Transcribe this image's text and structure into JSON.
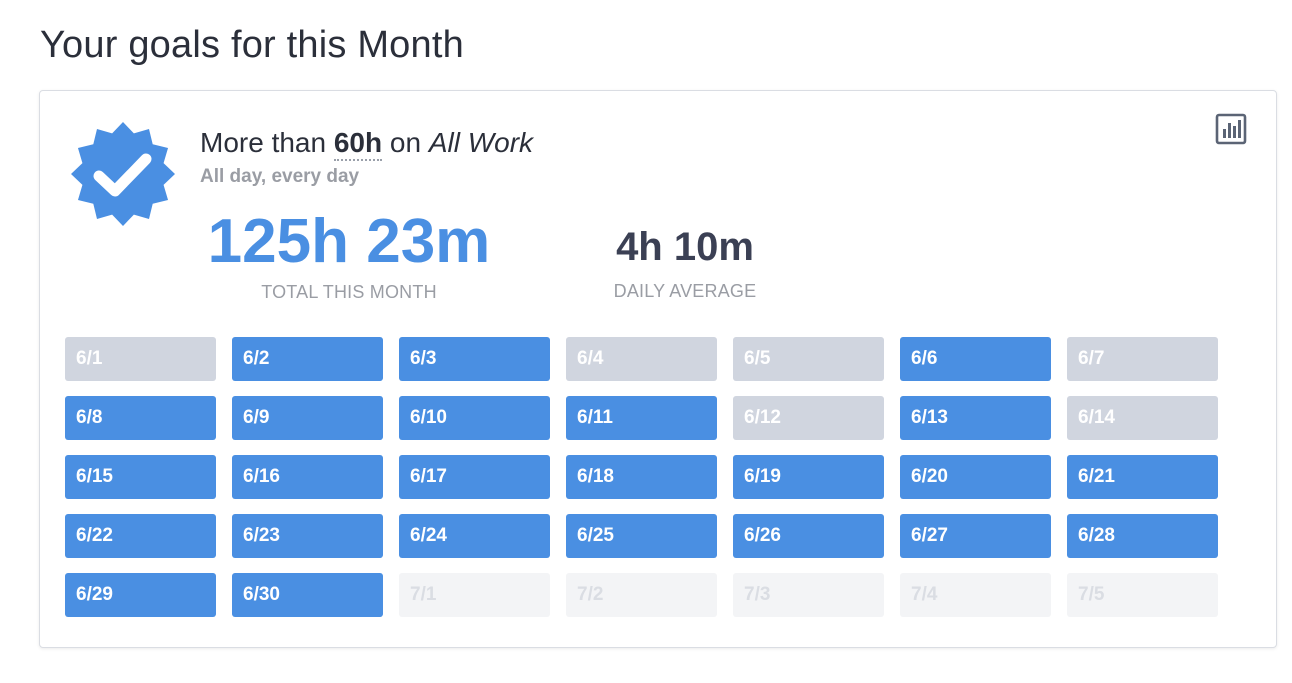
{
  "page": {
    "title": "Your goals for this Month"
  },
  "goal": {
    "prefix": "More than",
    "hours": "60h",
    "connector": "on",
    "project": "All Work",
    "schedule": "All day, every day",
    "badge_icon": "verified-check-icon",
    "chart_icon": "bar-chart-icon",
    "colors": {
      "accent": "#4a8fe2",
      "missed": "#d0d5df",
      "future": "#f3f4f6"
    }
  },
  "stats": {
    "total": {
      "value": "125h 23m",
      "label": "TOTAL THIS MONTH"
    },
    "average": {
      "value": "4h 10m",
      "label": "DAILY AVERAGE"
    }
  },
  "days": [
    {
      "label": "6/1",
      "status": "missed"
    },
    {
      "label": "6/2",
      "status": "met"
    },
    {
      "label": "6/3",
      "status": "met"
    },
    {
      "label": "6/4",
      "status": "missed"
    },
    {
      "label": "6/5",
      "status": "missed"
    },
    {
      "label": "6/6",
      "status": "met"
    },
    {
      "label": "6/7",
      "status": "missed"
    },
    {
      "label": "6/8",
      "status": "met"
    },
    {
      "label": "6/9",
      "status": "met"
    },
    {
      "label": "6/10",
      "status": "met"
    },
    {
      "label": "6/11",
      "status": "met"
    },
    {
      "label": "6/12",
      "status": "missed"
    },
    {
      "label": "6/13",
      "status": "met"
    },
    {
      "label": "6/14",
      "status": "missed"
    },
    {
      "label": "6/15",
      "status": "met"
    },
    {
      "label": "6/16",
      "status": "met"
    },
    {
      "label": "6/17",
      "status": "met"
    },
    {
      "label": "6/18",
      "status": "met"
    },
    {
      "label": "6/19",
      "status": "met"
    },
    {
      "label": "6/20",
      "status": "met"
    },
    {
      "label": "6/21",
      "status": "met"
    },
    {
      "label": "6/22",
      "status": "met"
    },
    {
      "label": "6/23",
      "status": "met"
    },
    {
      "label": "6/24",
      "status": "met"
    },
    {
      "label": "6/25",
      "status": "met"
    },
    {
      "label": "6/26",
      "status": "met"
    },
    {
      "label": "6/27",
      "status": "met"
    },
    {
      "label": "6/28",
      "status": "met"
    },
    {
      "label": "6/29",
      "status": "met"
    },
    {
      "label": "6/30",
      "status": "met"
    },
    {
      "label": "7/1",
      "status": "future"
    },
    {
      "label": "7/2",
      "status": "future"
    },
    {
      "label": "7/3",
      "status": "future"
    },
    {
      "label": "7/4",
      "status": "future"
    },
    {
      "label": "7/5",
      "status": "future"
    }
  ]
}
